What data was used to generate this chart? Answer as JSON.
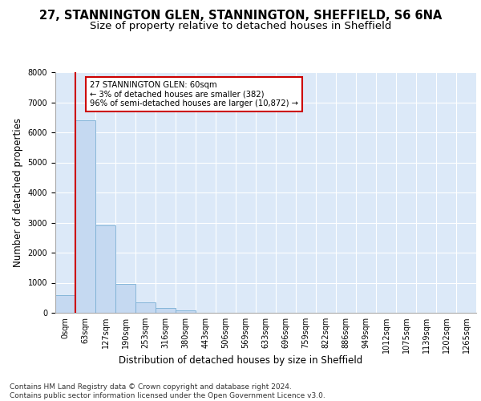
{
  "title_line1": "27, STANNINGTON GLEN, STANNINGTON, SHEFFIELD, S6 6NA",
  "title_line2": "Size of property relative to detached houses in Sheffield",
  "xlabel": "Distribution of detached houses by size in Sheffield",
  "ylabel": "Number of detached properties",
  "footnote": "Contains HM Land Registry data © Crown copyright and database right 2024.\nContains public sector information licensed under the Open Government Licence v3.0.",
  "bar_labels": [
    "0sqm",
    "63sqm",
    "127sqm",
    "190sqm",
    "253sqm",
    "316sqm",
    "380sqm",
    "443sqm",
    "506sqm",
    "569sqm",
    "633sqm",
    "696sqm",
    "759sqm",
    "822sqm",
    "886sqm",
    "949sqm",
    "1012sqm",
    "1075sqm",
    "1139sqm",
    "1202sqm",
    "1265sqm"
  ],
  "bar_values": [
    580,
    6400,
    2920,
    960,
    360,
    150,
    80,
    0,
    0,
    0,
    0,
    0,
    0,
    0,
    0,
    0,
    0,
    0,
    0,
    0,
    0
  ],
  "bar_color": "#c5d9f1",
  "bar_edgecolor": "#7bafd4",
  "highlight_line_color": "#cc0000",
  "annotation_text": "27 STANNINGTON GLEN: 60sqm\n← 3% of detached houses are smaller (382)\n96% of semi-detached houses are larger (10,872) →",
  "annotation_box_facecolor": "#ffffff",
  "annotation_box_edgecolor": "#cc0000",
  "ylim": [
    0,
    8000
  ],
  "yticks": [
    0,
    1000,
    2000,
    3000,
    4000,
    5000,
    6000,
    7000,
    8000
  ],
  "background_color": "#ffffff",
  "plot_background": "#dce9f8",
  "grid_color": "#ffffff",
  "title1_fontsize": 10.5,
  "title2_fontsize": 9.5,
  "axis_label_fontsize": 8.5,
  "tick_fontsize": 7,
  "footnote_fontsize": 6.5
}
